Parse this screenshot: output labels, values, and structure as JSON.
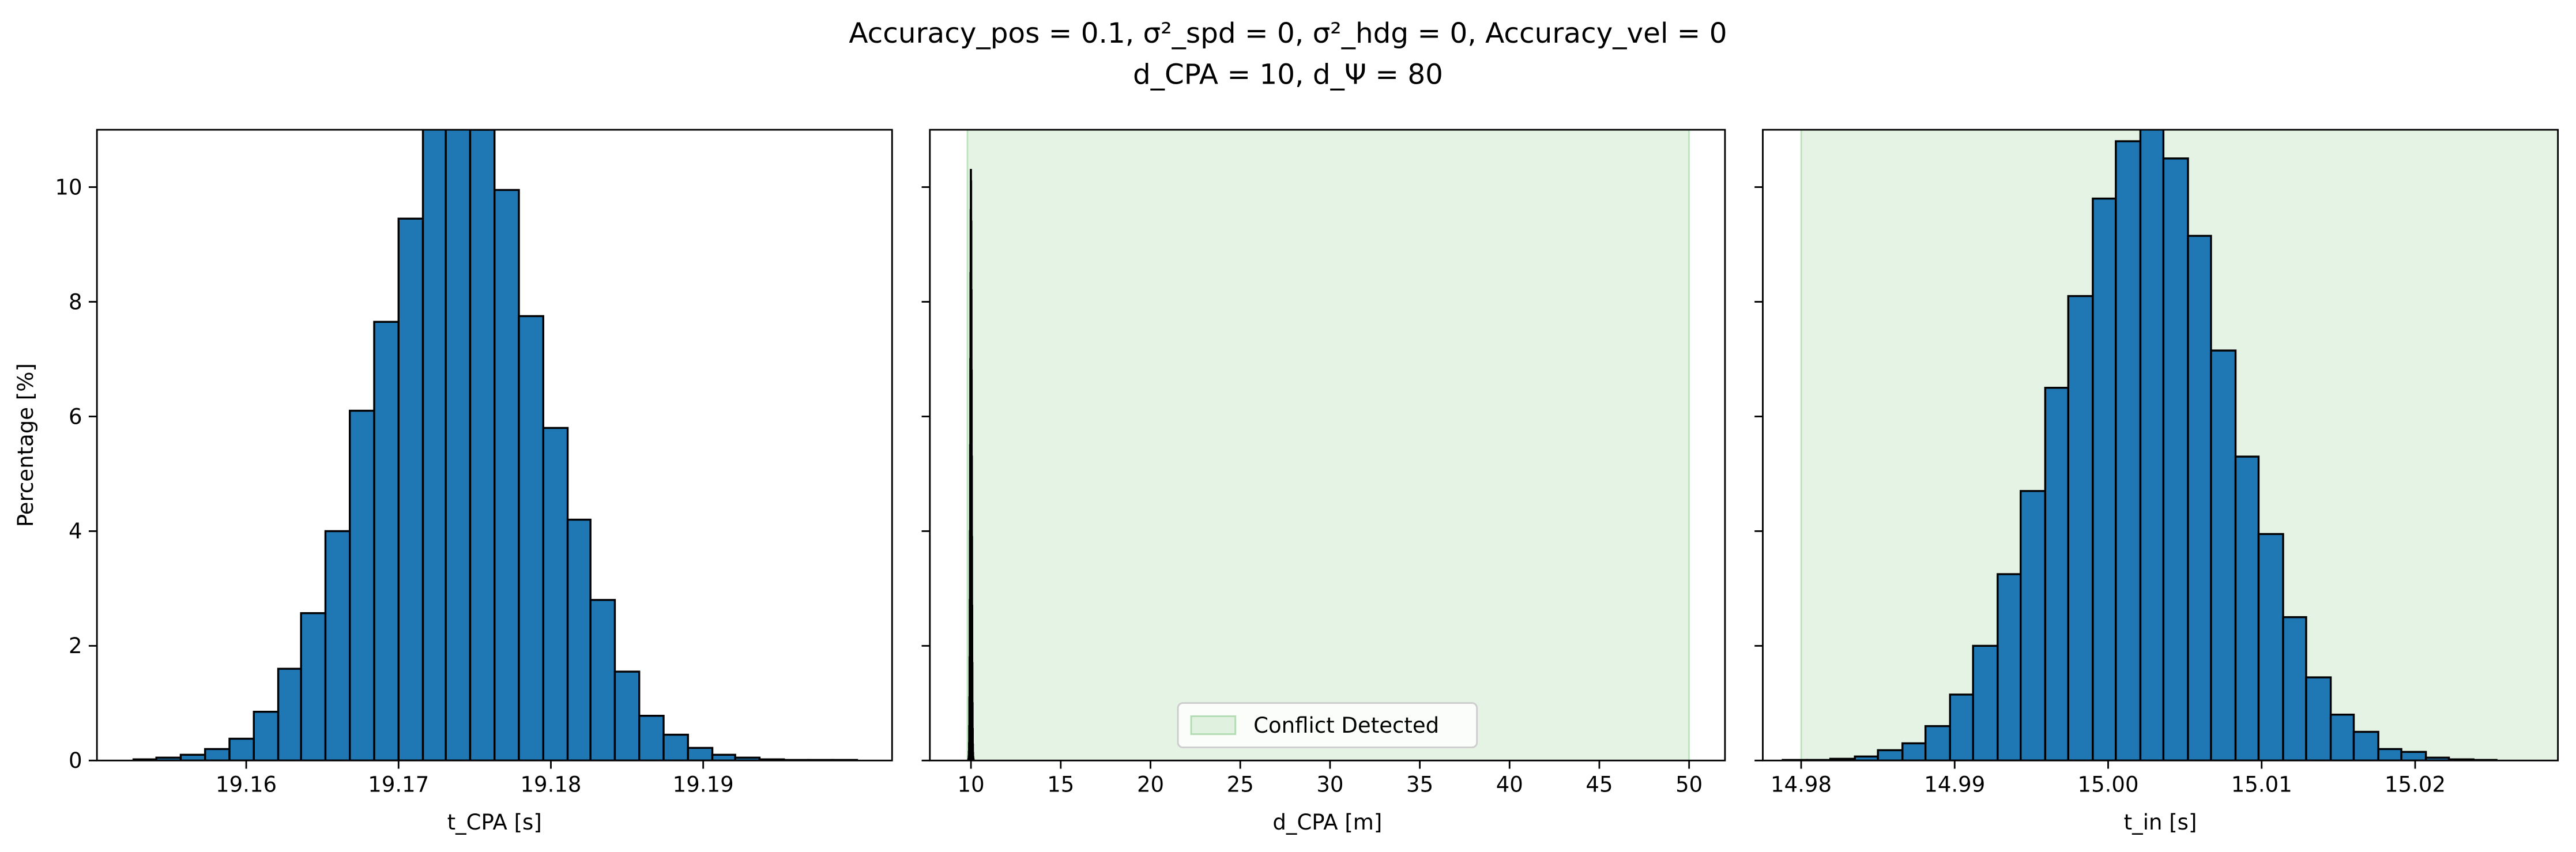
{
  "title": [
    "Accuracy_pos = 0.1, σ²_spd = 0, σ²_hdg = 0, Accuracy_vel = 0",
    "d_CPA = 10, d_Ψ = 80"
  ],
  "chart_data": [
    {
      "type": "histogram",
      "color": "#1f77b4",
      "edgecolor": "#000000",
      "xlabel": "t_CPA [s]",
      "ylabel": "Percentage [%]",
      "bins": [
        19.1526,
        19.1541,
        19.1557,
        19.1573,
        19.1589,
        19.1605,
        19.1621,
        19.1636,
        19.1652,
        19.1668,
        19.1684,
        19.17,
        19.1716,
        19.1731,
        19.1747,
        19.1763,
        19.1779,
        19.1795,
        19.1811,
        19.1826,
        19.1842,
        19.1858,
        19.1874,
        19.189,
        19.1906,
        19.1921,
        19.1937,
        19.1953,
        19.1969,
        19.1985,
        19.2001
      ],
      "values": [
        0.02,
        0.05,
        0.1,
        0.2,
        0.38,
        0.85,
        1.6,
        2.57,
        4.0,
        6.1,
        7.65,
        9.45,
        11.5,
        12,
        11,
        9.95,
        7.75,
        5.8,
        4.2,
        2.8,
        1.55,
        0.78,
        0.45,
        0.22,
        0.1,
        0.05,
        0.02,
        0.01,
        0.01,
        0.01
      ],
      "xlim": [
        19.1502,
        19.2024
      ],
      "xticks": [
        19.16,
        19.17,
        19.18,
        19.19
      ],
      "ylim": [
        0,
        11
      ],
      "yticks": [
        0,
        2,
        4,
        6,
        8,
        10
      ]
    },
    {
      "type": "histogram",
      "color": "#1f77b4",
      "edgecolor": "#000000",
      "xlabel": "d_CPA [m]",
      "bins": [
        9.85,
        9.86,
        9.87,
        9.88,
        9.89,
        9.9,
        9.91,
        9.92,
        9.93,
        9.94,
        9.95,
        9.96,
        9.97,
        9.98,
        9.99,
        10.0,
        10.01,
        10.02,
        10.03,
        10.04,
        10.05,
        10.06,
        10.07,
        10.08,
        10.09,
        10.1,
        10.11,
        10.12,
        10.13,
        10.14,
        10.15
      ],
      "values": [
        0.01,
        0.03,
        0.07,
        0.15,
        0.3,
        0.6,
        1.1,
        1.8,
        2.8,
        4.0,
        5.5,
        7.0,
        8.5,
        9.6,
        10.3,
        10.1,
        9.4,
        8.2,
        6.8,
        5.3,
        3.9,
        2.7,
        1.7,
        1.0,
        0.55,
        0.28,
        0.13,
        0.06,
        0.03,
        0.01
      ],
      "span": {
        "xlim": [
          9.8,
          50
        ],
        "color": "#2ca02c",
        "alpha": 0.12,
        "label": "Conflict Detected"
      },
      "legend": "lower center",
      "xlim": [
        7.71,
        52.0
      ],
      "xticks": [
        10,
        15,
        20,
        25,
        30,
        35,
        40,
        45,
        50
      ],
      "ylim": [
        0,
        11
      ],
      "yticks": [
        0,
        2,
        4,
        6,
        8,
        10
      ]
    },
    {
      "type": "histogram",
      "color": "#1f77b4",
      "edgecolor": "#000000",
      "xlabel": "t_in [s]",
      "bins": [
        14.9788,
        14.9804,
        14.9819,
        14.9835,
        14.985,
        14.9866,
        14.9881,
        14.9897,
        14.9912,
        14.9928,
        14.9943,
        14.9959,
        14.9974,
        14.999,
        15.0005,
        15.0021,
        15.0036,
        15.0052,
        15.0067,
        15.0083,
        15.0098,
        15.0114,
        15.0129,
        15.0145,
        15.016,
        15.0176,
        15.0191,
        15.0207,
        15.0222,
        15.0238,
        15.0253
      ],
      "values": [
        0.01,
        0.01,
        0.03,
        0.07,
        0.18,
        0.3,
        0.6,
        1.15,
        2.0,
        3.25,
        4.7,
        6.5,
        8.1,
        9.8,
        10.8,
        11.2,
        10.5,
        9.15,
        7.15,
        5.3,
        3.95,
        2.5,
        1.45,
        0.8,
        0.5,
        0.2,
        0.15,
        0.05,
        0.02,
        0.01
      ],
      "span": {
        "xlim": [
          14.98,
          15.03
        ],
        "color": "#2ca02c",
        "alpha": 0.12
      },
      "xlim": [
        14.9775,
        15.0293
      ],
      "xticks": [
        14.98,
        14.99,
        {
          "value": 15,
          "label": "15.00"
        },
        15.01,
        15.02
      ],
      "ylim": [
        0,
        11
      ],
      "yticks": [
        0,
        2,
        4,
        6,
        8,
        10
      ]
    }
  ]
}
